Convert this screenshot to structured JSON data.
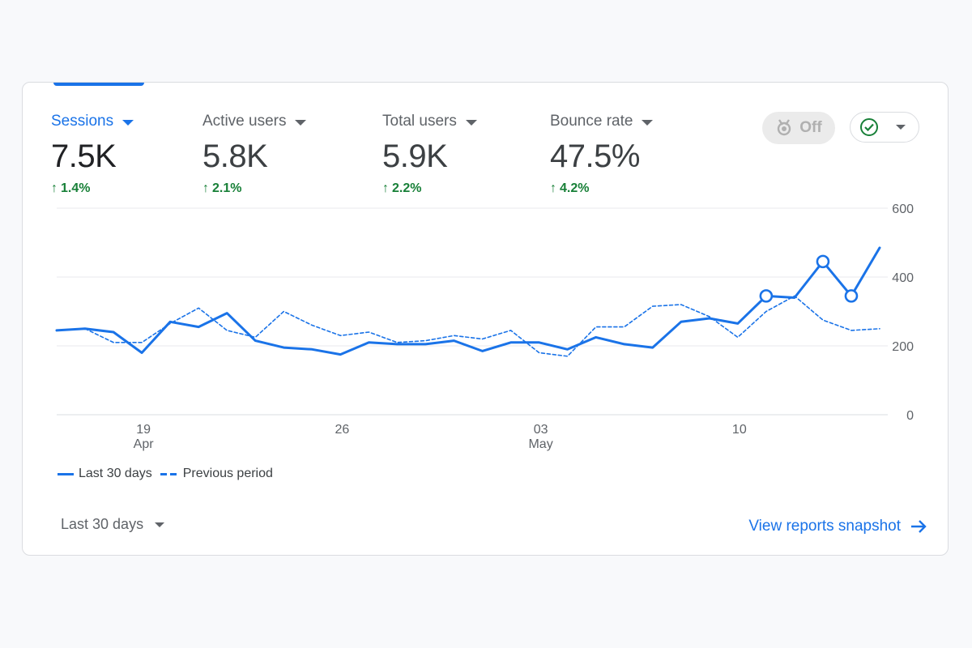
{
  "metrics": [
    {
      "label": "Sessions",
      "value": "7.5K",
      "change": "1.4%",
      "selected": true
    },
    {
      "label": "Active users",
      "value": "5.8K",
      "change": "2.1%",
      "selected": false
    },
    {
      "label": "Total users",
      "value": "5.9K",
      "change": "2.2%",
      "selected": false
    },
    {
      "label": "Bounce rate",
      "value": "47.5%",
      "change": "4.2%",
      "selected": false
    }
  ],
  "toggle": {
    "label": "Off"
  },
  "colors": {
    "accent": "#1a73e8",
    "positive": "#188038",
    "grid": "#e8eaed"
  },
  "icons": {
    "insights_toggle": "award-ribbon-icon",
    "check": "check-circle-icon",
    "arrow": "arrow-right-icon"
  },
  "legend": {
    "current": "Last 30 days",
    "previous": "Previous period"
  },
  "date_range": {
    "label": "Last 30 days"
  },
  "link": {
    "label": "View reports snapshot"
  },
  "chart_data": {
    "type": "line",
    "x_ticks": [
      {
        "label": "19",
        "sublabel": "Apr",
        "index": 3
      },
      {
        "label": "26",
        "sublabel": "",
        "index": 10
      },
      {
        "label": "03",
        "sublabel": "May",
        "index": 17
      },
      {
        "label": "10",
        "sublabel": "",
        "index": 24
      }
    ],
    "y_ticks": [
      0,
      200,
      400,
      600
    ],
    "ylim": [
      0,
      600
    ],
    "y_axis_position": "right",
    "grid": true,
    "legend_position": "bottom-left",
    "series": [
      {
        "name": "Last 30 days",
        "style": "solid",
        "values": [
          245,
          250,
          240,
          180,
          270,
          255,
          295,
          215,
          195,
          190,
          175,
          210,
          205,
          205,
          215,
          185,
          210,
          210,
          190,
          225,
          205,
          195,
          270,
          280,
          265,
          345,
          340,
          445,
          345,
          485
        ],
        "highlighted_indices": [
          25,
          27,
          28
        ]
      },
      {
        "name": "Previous period",
        "style": "dashed",
        "values": [
          245,
          250,
          210,
          210,
          265,
          310,
          245,
          225,
          300,
          260,
          230,
          240,
          210,
          215,
          230,
          220,
          245,
          180,
          170,
          255,
          255,
          315,
          320,
          285,
          225,
          300,
          345,
          275,
          245,
          250
        ]
      }
    ]
  }
}
